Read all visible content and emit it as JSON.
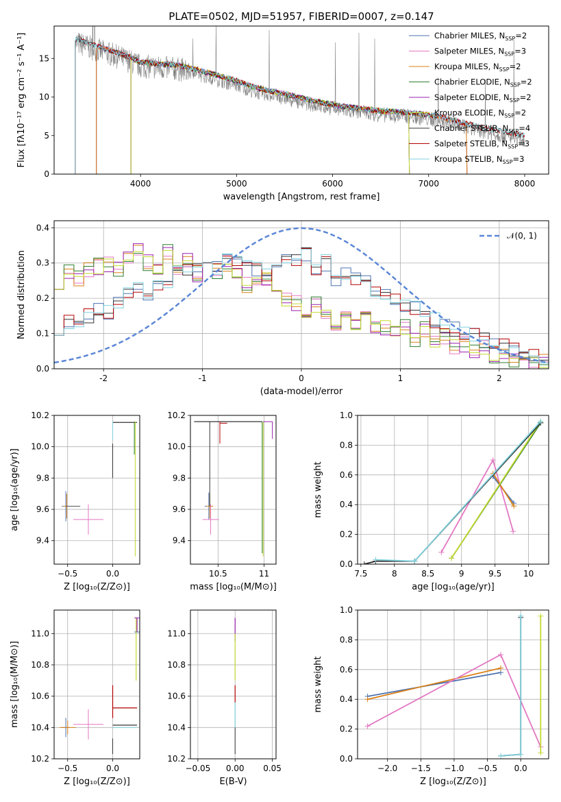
{
  "title": "PLATE=0502, MJD=51957, FIBERID=0007, z=0.147",
  "colors": {
    "chabrier_miles": "#4c72b0",
    "salpeter_miles": "#e377c2",
    "kroupa_miles": "#d98016",
    "chabrier_elodie": "#2d7d2d",
    "salpeter_elodie": "#9a1fae",
    "kroupa_elodie": "#c4d930",
    "chabrier_stelib": "#333333",
    "salpeter_stelib": "#b30000",
    "kroupa_stelib": "#7fd1de",
    "data": "#808080",
    "normal": "#5b86d6"
  },
  "chart_data": [
    {
      "id": "spectrum",
      "type": "line",
      "xlabel": "wavelength [Angstrom, rest frame]",
      "ylabel": "Flux [fλ10⁻¹⁷ erg cm⁻² s⁻¹ A⁻¹]",
      "xlim": [
        3100,
        8250
      ],
      "ylim": [
        0,
        19.2
      ],
      "xticks": [
        4000,
        5000,
        6000,
        7000,
        8000
      ],
      "yticks": [
        0,
        5,
        10,
        15
      ],
      "grid": false,
      "legend_position": "top-right",
      "legend": [
        {
          "prefix": "Chabrier MILES, N",
          "sub": "SSP",
          "suffix": "=2"
        },
        {
          "prefix": "Salpeter MILES, N",
          "sub": "SSP",
          "suffix": "=3"
        },
        {
          "prefix": "Kroupa MILES, N",
          "sub": "SSP",
          "suffix": "=2"
        },
        {
          "prefix": "Chabrier ELODIE, N",
          "sub": "SSP",
          "suffix": "=2"
        },
        {
          "prefix": "Salpeter ELODIE, N",
          "sub": "SSP",
          "suffix": "=2"
        },
        {
          "prefix": "Kroupa ELODIE, N",
          "sub": "SSP",
          "suffix": "=2"
        },
        {
          "prefix": "Chabrier STELIB, N",
          "sub": "SSP",
          "suffix": "=4"
        },
        {
          "prefix": "Salpeter STELIB, N",
          "sub": "SSP",
          "suffix": "=3"
        },
        {
          "prefix": "Kroupa STELIB, N",
          "sub": "SSP",
          "suffix": "=3"
        }
      ],
      "continuum": {
        "x": [
          3320,
          3500,
          3700,
          3900,
          4000,
          4200,
          4400,
          4600,
          4800,
          5000,
          5200,
          5500,
          5800,
          6100,
          6500,
          6800,
          7100,
          7400,
          7700,
          8000
        ],
        "y": [
          17.1,
          16.3,
          15.5,
          14.6,
          14.0,
          13.8,
          13.6,
          13.0,
          12.3,
          11.6,
          10.7,
          9.9,
          9.0,
          8.3,
          7.7,
          7.5,
          7.0,
          6.0,
          5.2,
          4.5
        ]
      },
      "model_starts": {
        "chabrier_miles": 3540,
        "salpeter_miles": 3540,
        "kroupa_miles": 3540,
        "chabrier_elodie": 3900,
        "salpeter_elodie": 3900,
        "kroupa_elodie": 3900,
        "chabrier_stelib": 3320,
        "salpeter_stelib": 3320,
        "kroupa_stelib": 3320
      },
      "model_ends": {
        "chabrier_miles": 7400,
        "salpeter_miles": 7400,
        "kroupa_miles": 7400,
        "chabrier_elodie": 6800,
        "salpeter_elodie": 6800,
        "kroupa_elodie": 6800,
        "chabrier_stelib": 8000,
        "salpeter_stelib": 8000,
        "kroupa_stelib": 8000
      }
    },
    {
      "id": "residuals",
      "type": "line",
      "xlabel": "(data-model)/error",
      "ylabel": "Normed distribution",
      "xlim": [
        -2.5,
        2.5
      ],
      "ylim": [
        0,
        0.42
      ],
      "xticks": [
        -2,
        -1,
        0,
        1,
        2
      ],
      "yticks": [
        0.0,
        0.1,
        0.2,
        0.3,
        0.4
      ],
      "grid": true,
      "legend": "𝒩(0, 1)",
      "legend_position": "top-right",
      "bin_edges_start": -2.5,
      "bin_width": 0.1,
      "series_group_a": [
        0.25,
        0.27,
        0.26,
        0.28,
        0.29,
        0.3,
        0.28,
        0.32,
        0.34,
        0.3,
        0.28,
        0.33,
        0.29,
        0.31,
        0.27,
        0.3,
        0.28,
        0.3,
        0.27,
        0.24,
        0.25,
        0.26,
        0.22,
        0.2,
        0.19,
        0.17,
        0.18,
        0.16,
        0.13,
        0.15,
        0.12,
        0.14,
        0.11,
        0.12,
        0.1,
        0.12,
        0.08,
        0.11,
        0.07,
        0.09,
        0.06,
        0.07,
        0.05,
        0.06,
        0.04,
        0.04,
        0.03,
        0.03,
        0.02,
        0.02
      ],
      "series_group_b": [
        0.12,
        0.13,
        0.14,
        0.15,
        0.17,
        0.16,
        0.19,
        0.21,
        0.22,
        0.2,
        0.23,
        0.25,
        0.27,
        0.29,
        0.28,
        0.3,
        0.29,
        0.31,
        0.3,
        0.29,
        0.28,
        0.27,
        0.29,
        0.3,
        0.31,
        0.32,
        0.28,
        0.3,
        0.26,
        0.27,
        0.25,
        0.24,
        0.22,
        0.21,
        0.19,
        0.18,
        0.17,
        0.16,
        0.14,
        0.12,
        0.11,
        0.1,
        0.09,
        0.08,
        0.07,
        0.06,
        0.05,
        0.04,
        0.03,
        0.02
      ]
    },
    {
      "id": "age_vs_Z",
      "type": "scatter",
      "xlabel": "Z [log₁₀(Z/Z⊙)]",
      "ylabel": "age  [log₁₀(age/yr)]",
      "xlim": [
        -0.65,
        0.3
      ],
      "ylim": [
        9.25,
        10.2
      ],
      "xticks": [
        -0.5,
        0.0
      ],
      "xticklabels": [
        "−0.5",
        "0.0"
      ],
      "yticks": [
        9.4,
        9.6,
        9.8,
        10.0,
        10.2
      ],
      "grid": true
    },
    {
      "id": "age_vs_mass",
      "type": "scatter",
      "xlabel": "mass [log₁₀(M/M⊙)]",
      "xlim": [
        10.2,
        11.13
      ],
      "ylim": [
        9.25,
        10.2
      ],
      "xticks": [
        10.5,
        11.0
      ],
      "yticks": [
        9.4,
        9.6,
        9.8,
        10.0,
        10.2
      ],
      "grid": true
    },
    {
      "id": "weight_vs_age",
      "type": "line",
      "xlabel": "age  [log₁₀(age/yr)]",
      "ylabel": "mass weight",
      "xlim": [
        7.45,
        10.3
      ],
      "ylim": [
        0,
        1.0
      ],
      "xticks": [
        7.5,
        8.0,
        8.5,
        9.0,
        9.5,
        10.0
      ],
      "yticks": [
        0.0,
        0.2,
        0.4,
        0.6,
        0.8,
        1.0
      ],
      "grid": true,
      "series": [
        {
          "key": "chabrier_miles",
          "x": [
            9.47,
            9.78
          ],
          "y": [
            0.59,
            0.41
          ]
        },
        {
          "key": "salpeter_miles",
          "x": [
            8.7,
            9.47,
            9.77
          ],
          "y": [
            0.08,
            0.7,
            0.22
          ]
        },
        {
          "key": "kroupa_miles",
          "x": [
            9.47,
            9.78
          ],
          "y": [
            0.61,
            0.39
          ]
        },
        {
          "key": "chabrier_elodie",
          "x": [
            8.85,
            10.18
          ],
          "y": [
            0.04,
            0.95
          ]
        },
        {
          "key": "kroupa_elodie",
          "x": [
            8.85,
            10.18
          ],
          "y": [
            0.04,
            0.96
          ]
        },
        {
          "key": "chabrier_stelib",
          "x": [
            7.55,
            7.72,
            8.3,
            10.18
          ],
          "y": [
            0.0,
            0.02,
            0.02,
            0.95
          ]
        },
        {
          "key": "kroupa_stelib",
          "x": [
            7.72,
            8.3,
            10.18
          ],
          "y": [
            0.03,
            0.02,
            0.96
          ]
        }
      ]
    },
    {
      "id": "mass_vs_Z",
      "type": "scatter",
      "xlabel": "Z [log₁₀(Z/Z⊙)]",
      "ylabel": "mass [log₁₀(M/M⊙)]",
      "xlim": [
        -0.65,
        0.3
      ],
      "ylim": [
        10.2,
        11.15
      ],
      "xticks": [
        -0.5,
        0.0
      ],
      "xticklabels": [
        "−0.5",
        "0.0"
      ],
      "yticks": [
        10.2,
        10.4,
        10.6,
        10.8,
        11.0
      ],
      "grid": true
    },
    {
      "id": "mass_vs_ebv",
      "type": "scatter",
      "xlabel": "E(B-V)",
      "xlim": [
        -0.06,
        0.055
      ],
      "ylim": [
        10.2,
        11.15
      ],
      "xticks": [
        -0.05,
        0.0,
        0.05
      ],
      "xticklabels": [
        "−0.05",
        "0.00",
        "0.05"
      ],
      "yticks": [
        10.2,
        10.4,
        10.6,
        10.8,
        11.0
      ],
      "grid": true
    },
    {
      "id": "weight_vs_Z",
      "type": "line",
      "xlabel": "Z [log₁₀(Z/Z⊙)]",
      "ylabel": "mass weight",
      "xlim": [
        -2.45,
        0.42
      ],
      "ylim": [
        0,
        1.0
      ],
      "xticks": [
        -2.0,
        -1.5,
        -1.0,
        -0.5,
        0.0
      ],
      "xticklabels": [
        "−2.0",
        "−1.5",
        "−1.0",
        "−0.5",
        "0.0"
      ],
      "yticks": [
        0.0,
        0.2,
        0.4,
        0.6,
        0.8,
        1.0
      ],
      "grid": true,
      "series": [
        {
          "key": "chabrier_miles",
          "x": [
            -2.3,
            -0.3
          ],
          "y": [
            0.42,
            0.58
          ]
        },
        {
          "key": "kroupa_miles",
          "x": [
            -2.3,
            -0.3
          ],
          "y": [
            0.4,
            0.61
          ]
        },
        {
          "key": "salpeter_miles",
          "x": [
            -2.3,
            -0.3,
            0.3
          ],
          "y": [
            0.22,
            0.7,
            0.08
          ]
        },
        {
          "key": "chabrier_stelib",
          "x": [
            -0.3,
            0.0,
            0.0
          ],
          "y": [
            0.02,
            0.03,
            0.95
          ]
        },
        {
          "key": "kroupa_stelib",
          "x": [
            -0.3,
            0.0,
            0.0
          ],
          "y": [
            0.02,
            0.03,
            0.96
          ]
        },
        {
          "key": "kroupa_elodie",
          "x": [
            0.3,
            0.3
          ],
          "y": [
            0.04,
            0.96
          ]
        }
      ]
    }
  ]
}
